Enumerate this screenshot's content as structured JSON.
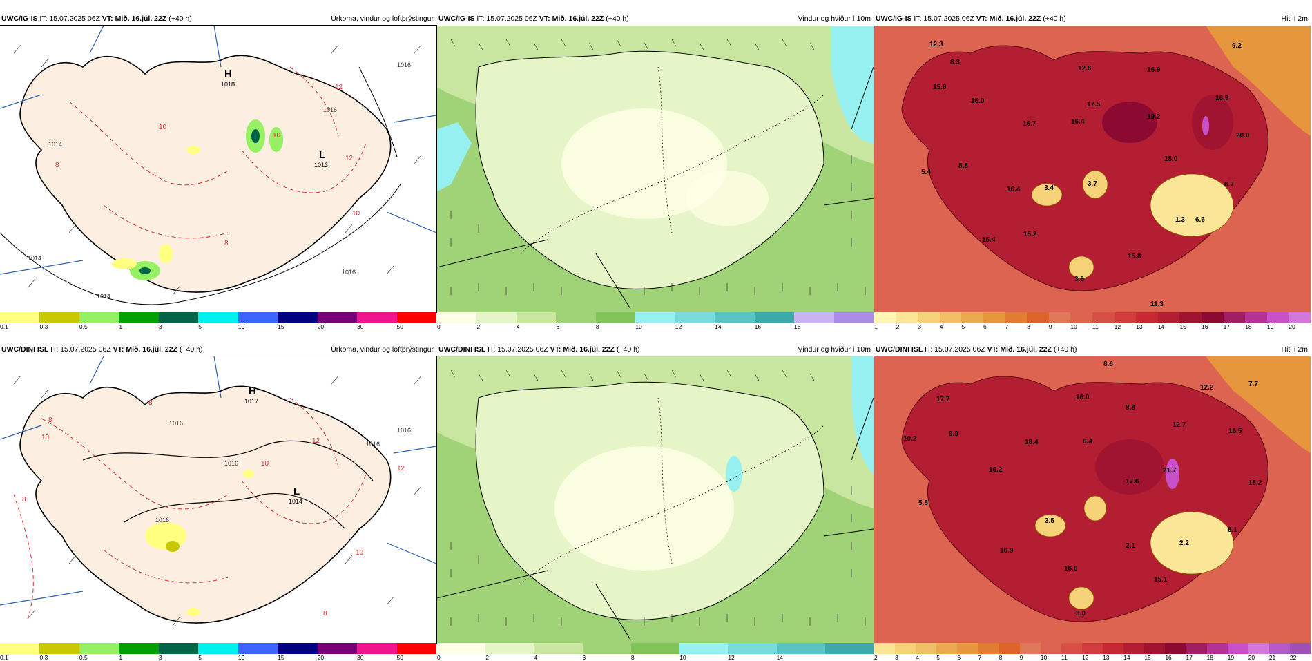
{
  "rows": [
    {
      "panels": [
        {
          "model": "UWC/IG-IS",
          "it": "IT: 15.07.2025 06Z",
          "vt_label": "VT:",
          "vt": "Mið. 16.júl. 22Z",
          "lead": "(+40 h)",
          "title": "Úrkoma, vindur og loftþrýstingur",
          "legend_colors": [
            "#ffff80",
            "#c8c800",
            "#96f064",
            "#00a000",
            "#006446",
            "#00f0f0",
            "#3c64ff",
            "#000080",
            "#780078",
            "#f0148c",
            "#ff0000"
          ],
          "legend_ticks": [
            "0.1",
            "0.3",
            "0.5",
            "1",
            "3",
            "5",
            "10",
            "15",
            "20",
            "30",
            "50"
          ],
          "pressure_labels": [
            {
              "text": "H",
              "sub": "1018"
            },
            {
              "text": "L",
              "sub": "1013"
            }
          ],
          "value_labels": [
            "1014",
            "1016",
            "1016",
            "1014",
            "1016",
            "1014",
            "12",
            "12",
            "10",
            "8",
            "8",
            "10",
            "10"
          ]
        },
        {
          "model": "UWC/IG-IS",
          "it": "IT: 15.07.2025 06Z",
          "vt_label": "VT:",
          "vt": "Mið. 16.júl. 22Z",
          "lead": "(+40 h)",
          "title": "Vindur og hviður í 10m",
          "legend_colors": [
            "#ffffe6",
            "#e6f5c8",
            "#c8e6a0",
            "#a0d278",
            "#82c35a",
            "#96f0f0",
            "#78dcdc",
            "#5ac3c3",
            "#3caaaa",
            "#c8b4f0",
            "#aa8ce6"
          ],
          "legend_ticks": [
            "0",
            "2",
            "4",
            "6",
            "8",
            "10",
            "12",
            "14",
            "16",
            "18"
          ]
        },
        {
          "model": "UWC/IG-IS",
          "it": "IT: 15.07.2025 06Z",
          "vt_label": "VT:",
          "vt": "Mið. 16.júl. 22Z",
          "lead": "(+40 h)",
          "title": "Hiti í 2m",
          "legend_colors": [
            "#fff5b4",
            "#fae696",
            "#f5d278",
            "#f0be64",
            "#ebaa50",
            "#e6963c",
            "#e17d32",
            "#dc6428",
            "#e0785a",
            "#dc6450",
            "#d75046",
            "#d23c3c",
            "#c82832",
            "#b41e32",
            "#a01432",
            "#8c0a32",
            "#a01e64",
            "#b43296",
            "#c850c8",
            "#d278dc"
          ],
          "legend_ticks": [
            "1",
            "2",
            "3",
            "4",
            "5",
            "6",
            "7",
            "8",
            "9",
            "10",
            "11",
            "12",
            "13",
            "14",
            "15",
            "16",
            "17",
            "18",
            "19",
            "20"
          ],
          "temp_labels": [
            "12.3",
            "8.3",
            "15.8",
            "16.0",
            "12.6",
            "16.9",
            "9.2",
            "16.9",
            "16.7",
            "16.4",
            "17.5",
            "19.2",
            "20.0",
            "18.0",
            "5.4",
            "8.8",
            "16.4",
            "3.4",
            "3.7",
            "6.7",
            "1.3",
            "6.6",
            "15.4",
            "15.2",
            "15.8",
            "3.6",
            "11.3"
          ]
        }
      ]
    },
    {
      "panels": [
        {
          "model": "UWC/DINI ISL",
          "it": "IT: 15.07.2025 06Z",
          "vt_label": "VT:",
          "vt": "Mið. 16.júl. 22Z",
          "lead": "(+40 h)",
          "title": "Úrkoma, vindur og loftþrýstingur",
          "legend_colors": [
            "#ffff80",
            "#c8c800",
            "#96f064",
            "#00a000",
            "#006446",
            "#00f0f0",
            "#3c64ff",
            "#000080",
            "#780078",
            "#f0148c",
            "#ff0000"
          ],
          "legend_ticks": [
            "0.1",
            "0.3",
            "0.5",
            "1",
            "3",
            "5",
            "10",
            "15",
            "20",
            "30",
            "50"
          ],
          "pressure_labels": [
            {
              "text": "H",
              "sub": "1017"
            },
            {
              "text": "L",
              "sub": "1014"
            }
          ],
          "value_labels": [
            "1016",
            "1016",
            "1016",
            "1016",
            "1016",
            "12",
            "12",
            "10",
            "10",
            "8",
            "8",
            "8",
            "8",
            "10"
          ]
        },
        {
          "model": "UWC/DINI ISL",
          "it": "IT: 15.07.2025 06Z",
          "vt_label": "VT:",
          "vt": "Mið. 16.júl. 22Z",
          "lead": "(+40 h)",
          "title": "Vindur og hviður í 10m",
          "legend_colors": [
            "#ffffe6",
            "#e6f5c8",
            "#c8e6a0",
            "#a0d278",
            "#82c35a",
            "#96f0f0",
            "#78dcdc",
            "#5ac3c3",
            "#3caaaa"
          ],
          "legend_ticks": [
            "0",
            "2",
            "4",
            "6",
            "8",
            "10",
            "12",
            "14"
          ]
        },
        {
          "model": "UWC/DINI ISL",
          "it": "IT: 15.07.2025 06Z",
          "vt_label": "VT:",
          "vt": "Mið. 16.júl. 22Z",
          "lead": "(+40 h)",
          "title": "Hiti í 2m",
          "legend_colors": [
            "#fae696",
            "#f5d278",
            "#f0be64",
            "#ebaa50",
            "#e6963c",
            "#e17d32",
            "#dc6428",
            "#e0785a",
            "#dc6450",
            "#d75046",
            "#d23c3c",
            "#c82832",
            "#b41e32",
            "#a01432",
            "#8c0a32",
            "#a01e64",
            "#b43296",
            "#c850c8",
            "#d278dc",
            "#b45ac8",
            "#a050b4"
          ],
          "legend_ticks": [
            "2",
            "3",
            "4",
            "5",
            "6",
            "7",
            "8",
            "9",
            "10",
            "11",
            "12",
            "13",
            "14",
            "15",
            "16",
            "17",
            "18",
            "19",
            "20",
            "21",
            "22"
          ],
          "temp_labels": [
            "8.6",
            "17.7",
            "16.0",
            "12.2",
            "7.7",
            "8.8",
            "10.2",
            "9.9",
            "12.7",
            "16.5",
            "18.4",
            "6.4",
            "21.7",
            "16.2",
            "17.6",
            "18.2",
            "5.8",
            "3.5",
            "8.1",
            "2.1",
            "2.2",
            "16.9",
            "16.6",
            "15.1",
            "3.0"
          ]
        }
      ]
    }
  ]
}
